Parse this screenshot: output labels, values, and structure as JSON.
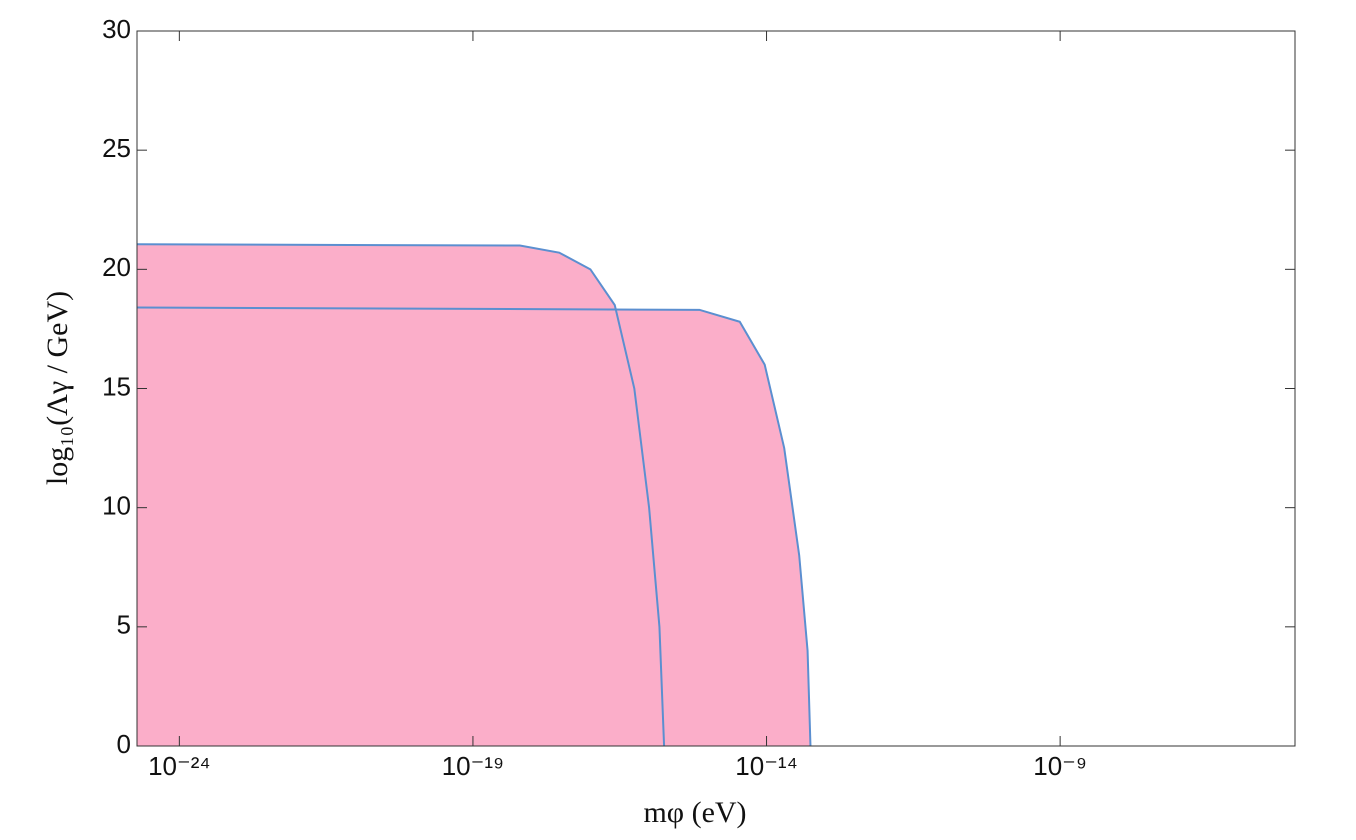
{
  "chart_data": {
    "type": "area",
    "x_label": "mφ (eV)",
    "y_label": "log₁₀(Λγ / GeV)",
    "x_scale": "log",
    "xlim": [
      1.9e-25,
      1e-05
    ],
    "ylim": [
      0,
      30
    ],
    "xticks": [
      {
        "value": 1e-24,
        "label": "10⁻²⁴"
      },
      {
        "value": 1e-19,
        "label": "10⁻¹⁹"
      },
      {
        "value": 1e-14,
        "label": "10⁻¹⁴"
      },
      {
        "value": 1e-09,
        "label": "10⁻⁹"
      }
    ],
    "yticks": [
      0,
      5,
      10,
      15,
      20,
      25,
      30
    ],
    "fill_color": "#fbaec9",
    "series": [
      {
        "color": "#5b8fd0",
        "x": [
          1.9e-25,
          6.3e-19,
          2.95e-18,
          1e-17,
          2.6e-17,
          5.6e-17,
          1e-16,
          1.5e-16,
          1.8e-16
        ],
        "values": [
          21.05,
          21.0,
          20.7,
          20.0,
          18.5,
          15,
          10,
          5,
          0
        ]
      },
      {
        "color": "#5b8fd0",
        "x": [
          1.9e-25,
          7.2e-16,
          3.5e-15,
          9.3e-15,
          2e-14,
          3.6e-14,
          5e-14,
          5.6e-14
        ],
        "values": [
          18.4,
          18.3,
          17.8,
          16,
          12.5,
          8,
          4,
          0
        ]
      }
    ]
  }
}
